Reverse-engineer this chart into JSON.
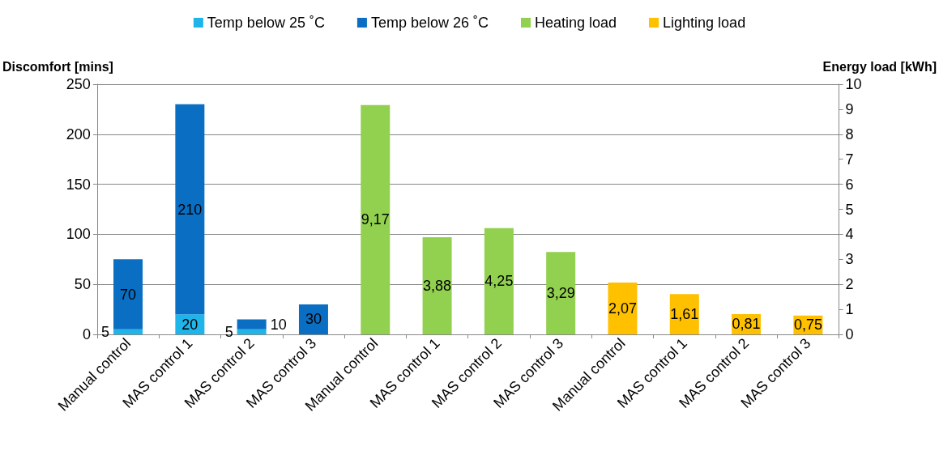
{
  "chart_data": {
    "type": "bar",
    "stacked": true,
    "categories": [
      "Manual control",
      "MAS control 1",
      "MAS control 2",
      "MAS control 3",
      "Manual control",
      "MAS control 1",
      "MAS control 2",
      "MAS control 3",
      "Manual control",
      "MAS control 1",
      "MAS control 2",
      "MAS control 3"
    ],
    "ylabel": "Discomfort [mins]",
    "y2label": "Energy load [kWh]",
    "ylim": [
      0,
      250
    ],
    "yticks": [
      0,
      50,
      100,
      150,
      200,
      250
    ],
    "y2lim": [
      0,
      10
    ],
    "y2ticks": [
      0,
      1,
      2,
      3,
      4,
      5,
      6,
      7,
      8,
      9,
      10
    ],
    "grid": "y",
    "legend": "top",
    "series": [
      {
        "name": "Temp below 25 ˚C",
        "color": "#1fb4ea",
        "values": [
          5,
          20,
          5,
          null,
          null,
          null,
          null,
          null,
          null,
          null,
          null,
          null
        ],
        "value_labels": [
          "5",
          "20",
          "5",
          null,
          null,
          null,
          null,
          null,
          null,
          null,
          null,
          null
        ]
      },
      {
        "name": "Temp below 26 ˚C",
        "color": "#0a6fc2",
        "values": [
          70,
          210,
          10,
          30,
          null,
          null,
          null,
          null,
          null,
          null,
          null,
          null
        ],
        "value_labels": [
          "70",
          "210",
          "10",
          "30",
          null,
          null,
          null,
          null,
          null,
          null,
          null,
          null
        ]
      },
      {
        "name": "Heating load",
        "color": "#92d050",
        "axis": "y2",
        "values": [
          null,
          null,
          null,
          null,
          9.17,
          3.88,
          4.25,
          3.29,
          null,
          null,
          null,
          null
        ],
        "value_labels": [
          null,
          null,
          null,
          null,
          "9,17",
          "3,88",
          "4,25",
          "3,29",
          null,
          null,
          null,
          null
        ]
      },
      {
        "name": "Lighting load",
        "color": "#ffc000",
        "axis": "y2",
        "values": [
          null,
          null,
          null,
          null,
          null,
          null,
          null,
          null,
          2.07,
          1.61,
          0.81,
          0.75
        ],
        "value_labels": [
          null,
          null,
          null,
          null,
          null,
          null,
          null,
          null,
          "2,07",
          "1,61",
          "0,81",
          "0,75"
        ]
      }
    ]
  }
}
